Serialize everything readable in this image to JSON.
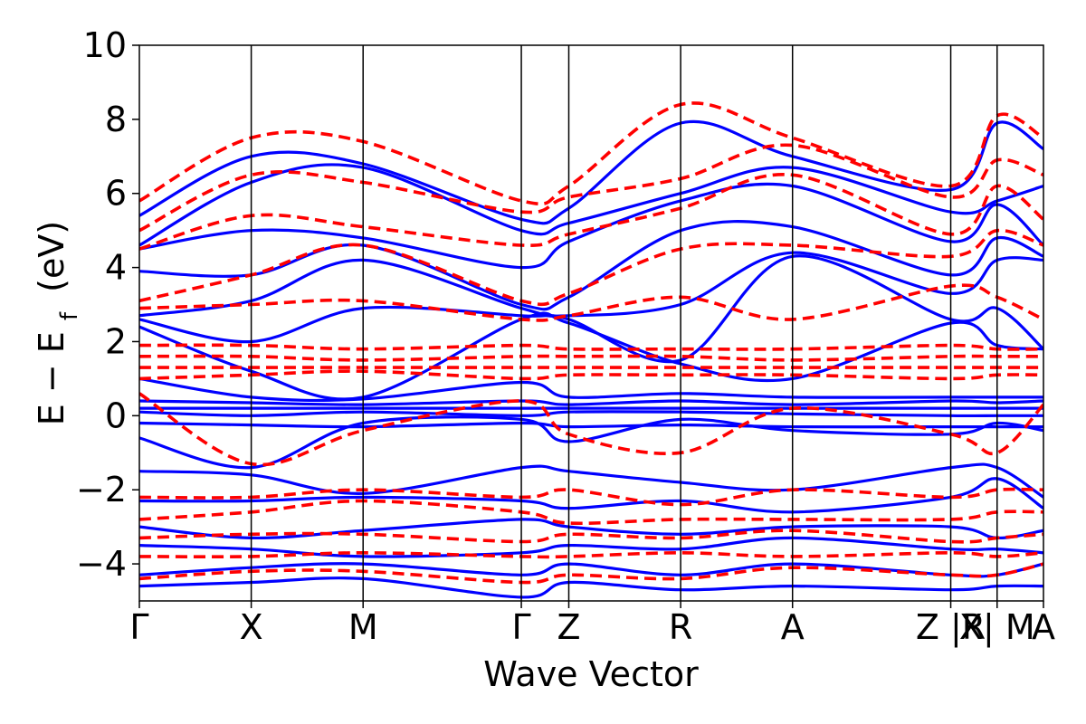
{
  "chart_data": {
    "type": "line",
    "title": "",
    "xlabel": "Wave Vector",
    "ylabel": "E − E",
    "ylabel_subscript": "f",
    "ylabel_unit": "(eV)",
    "ylim": [
      -5,
      10
    ],
    "y_ticks": [
      -4,
      -2,
      0,
      2,
      4,
      6,
      8,
      10
    ],
    "y_tick_labels": [
      "−4",
      "−2",
      "0",
      "2",
      "4",
      "6",
      "8",
      "10"
    ],
    "k_path": {
      "points": [
        0,
        0.707,
        1.414,
        2.414,
        2.714,
        3.421,
        4.128,
        5.128,
        5.421,
        5.714
      ],
      "labels": [
        "Γ",
        "X",
        "M",
        "Γ",
        "Z",
        "R",
        "A",
        "Z |R",
        "X| M",
        "A"
      ],
      "breaks": [
        "Z|R",
        "X|M"
      ]
    },
    "series_styles": [
      {
        "color": "#0000ff",
        "dash": "solid"
      },
      {
        "color": "#ff0000",
        "dash": "dashed"
      }
    ],
    "solid_bands": [
      {
        "x": [
          0,
          0.707,
          1.414,
          2.414,
          2.714,
          3.421,
          4.128,
          5.128,
          5.421,
          5.714
        ],
        "y": [
          5.4,
          7.0,
          6.8,
          5.3,
          5.6,
          7.9,
          7.0,
          6.1,
          7.9,
          7.2
        ]
      },
      {
        "x": [
          0,
          0.707,
          1.414,
          2.414,
          2.714,
          3.421,
          4.128,
          5.128,
          5.421,
          5.714
        ],
        "y": [
          4.6,
          6.3,
          6.7,
          5.0,
          5.2,
          6.0,
          6.7,
          5.5,
          5.8,
          6.2
        ]
      },
      {
        "x": [
          0,
          0.707,
          1.414,
          2.414,
          2.714,
          3.421,
          4.128,
          5.128,
          5.421,
          5.714
        ],
        "y": [
          4.5,
          5.0,
          4.8,
          4.0,
          4.7,
          5.8,
          6.2,
          4.7,
          5.7,
          4.6
        ]
      },
      {
        "x": [
          0,
          0.707,
          1.414,
          2.414,
          2.714,
          3.421,
          4.128,
          5.128,
          5.421,
          5.714
        ],
        "y": [
          3.9,
          3.8,
          4.6,
          3.0,
          3.2,
          5.0,
          5.1,
          3.8,
          4.8,
          4.3
        ]
      },
      {
        "x": [
          0,
          0.707,
          1.414,
          2.414,
          2.714,
          3.421,
          4.128,
          5.128,
          5.421,
          5.714
        ],
        "y": [
          2.7,
          3.1,
          4.2,
          2.9,
          2.7,
          3.0,
          4.4,
          3.3,
          4.2,
          4.2
        ]
      },
      {
        "x": [
          0,
          0.707,
          1.414,
          2.414,
          2.714,
          3.421,
          4.128,
          5.128,
          5.421,
          5.714
        ],
        "y": [
          2.6,
          2.0,
          2.9,
          2.7,
          2.6,
          1.5,
          4.3,
          2.6,
          2.9,
          1.8
        ]
      },
      {
        "x": [
          0,
          0.707,
          1.414,
          2.414,
          2.714,
          3.421,
          4.128,
          5.128,
          5.421,
          5.714
        ],
        "y": [
          2.4,
          1.2,
          0.5,
          2.6,
          2.5,
          1.4,
          1.0,
          2.5,
          1.9,
          1.8
        ]
      },
      {
        "x": [
          0,
          0.707,
          1.414,
          2.414,
          2.714,
          3.421,
          4.128,
          5.128,
          5.421,
          5.714
        ],
        "y": [
          1.0,
          0.5,
          0.45,
          0.9,
          0.5,
          0.6,
          0.5,
          0.5,
          0.5,
          0.5
        ]
      },
      {
        "x": [
          0,
          0.707,
          1.414,
          2.414,
          2.714,
          3.421,
          4.128,
          5.128,
          5.421,
          5.714
        ],
        "y": [
          0.4,
          0.35,
          0.3,
          0.4,
          0.3,
          0.4,
          0.3,
          0.4,
          0.35,
          0.4
        ]
      },
      {
        "x": [
          0,
          0.707,
          1.414,
          2.414,
          2.714,
          3.421,
          4.128,
          5.128,
          5.421,
          5.714
        ],
        "y": [
          0.2,
          0.2,
          0.2,
          0.2,
          0.2,
          0.2,
          0.2,
          0.2,
          0.2,
          0.2
        ]
      },
      {
        "x": [
          0,
          0.707,
          1.414,
          2.414,
          2.714,
          3.421,
          4.128,
          5.128,
          5.421,
          5.714
        ],
        "y": [
          0.1,
          0.0,
          0.1,
          0.0,
          0.1,
          0.1,
          0.05,
          0.0,
          0.0,
          0.0
        ]
      },
      {
        "x": [
          0,
          0.707,
          1.414,
          2.414,
          2.714,
          3.421,
          4.128,
          5.128,
          5.421,
          5.714
        ],
        "y": [
          -0.2,
          -0.25,
          -0.3,
          -0.2,
          -0.3,
          -0.25,
          -0.3,
          -0.3,
          -0.3,
          -0.3
        ]
      },
      {
        "x": [
          0,
          0.707,
          1.414,
          2.414,
          2.714,
          3.421,
          4.128,
          5.128,
          5.421,
          5.714
        ],
        "y": [
          -0.6,
          -1.4,
          -0.2,
          -0.1,
          -0.7,
          -0.1,
          -0.4,
          -0.5,
          -0.2,
          -0.4
        ]
      },
      {
        "x": [
          0,
          0.707,
          1.414,
          2.414,
          2.714,
          3.421,
          4.128,
          5.128,
          5.421,
          5.714
        ],
        "y": [
          -1.5,
          -1.6,
          -2.1,
          -1.4,
          -1.5,
          -1.8,
          -2.0,
          -1.4,
          -1.4,
          -2.2
        ]
      },
      {
        "x": [
          0,
          0.707,
          1.414,
          2.414,
          2.714,
          3.421,
          4.128,
          5.128,
          5.421,
          5.714
        ],
        "y": [
          -2.3,
          -2.3,
          -2.2,
          -2.3,
          -2.5,
          -2.3,
          -2.6,
          -2.2,
          -1.7,
          -2.5
        ]
      },
      {
        "x": [
          0,
          0.707,
          1.414,
          2.414,
          2.714,
          3.421,
          4.128,
          5.128,
          5.421,
          5.714
        ],
        "y": [
          -3.0,
          -3.3,
          -3.1,
          -2.8,
          -3.0,
          -3.2,
          -3.0,
          -3.0,
          -3.3,
          -3.1
        ]
      },
      {
        "x": [
          0,
          0.707,
          1.414,
          2.414,
          2.714,
          3.421,
          4.128,
          5.128,
          5.421,
          5.714
        ],
        "y": [
          -3.5,
          -3.6,
          -3.8,
          -3.7,
          -3.5,
          -3.6,
          -3.3,
          -3.6,
          -3.6,
          -3.7
        ]
      },
      {
        "x": [
          0,
          0.707,
          1.414,
          2.414,
          2.714,
          3.421,
          4.128,
          5.128,
          5.421,
          5.714
        ],
        "y": [
          -4.3,
          -4.1,
          -4.0,
          -4.3,
          -4.0,
          -4.3,
          -4.0,
          -4.3,
          -4.3,
          -4.0
        ]
      },
      {
        "x": [
          0,
          0.707,
          1.414,
          2.414,
          2.714,
          3.421,
          4.128,
          5.128,
          5.421,
          5.714
        ],
        "y": [
          -4.6,
          -4.5,
          -4.4,
          -4.9,
          -4.5,
          -4.7,
          -4.6,
          -4.7,
          -4.6,
          -4.6
        ]
      }
    ],
    "dashed_bands": [
      {
        "x": [
          0,
          0.707,
          1.414,
          2.414,
          2.714,
          3.421,
          4.128,
          5.128,
          5.421,
          5.714
        ],
        "y": [
          5.8,
          7.5,
          7.4,
          5.8,
          6.2,
          8.4,
          7.5,
          6.2,
          8.1,
          7.5
        ]
      },
      {
        "x": [
          0,
          0.707,
          1.414,
          2.414,
          2.714,
          3.421,
          4.128,
          5.128,
          5.421,
          5.714
        ],
        "y": [
          5.0,
          6.5,
          6.3,
          5.5,
          5.9,
          6.4,
          7.3,
          5.9,
          6.9,
          6.5
        ]
      },
      {
        "x": [
          0,
          0.707,
          1.414,
          2.414,
          2.714,
          3.421,
          4.128,
          5.128,
          5.421,
          5.714
        ],
        "y": [
          4.5,
          5.4,
          5.1,
          4.6,
          4.9,
          5.6,
          6.5,
          4.9,
          6.2,
          5.3
        ]
      },
      {
        "x": [
          0,
          0.707,
          1.414,
          2.414,
          2.714,
          3.421,
          4.128,
          5.128,
          5.421,
          5.714
        ],
        "y": [
          3.1,
          3.8,
          4.6,
          3.1,
          3.3,
          4.5,
          4.6,
          4.3,
          5.0,
          4.6
        ]
      },
      {
        "x": [
          0,
          0.707,
          1.414,
          2.414,
          2.714,
          3.421,
          4.128,
          5.128,
          5.421,
          5.714
        ],
        "y": [
          2.9,
          3.0,
          3.1,
          2.6,
          2.7,
          3.2,
          2.6,
          3.5,
          3.2,
          2.6
        ]
      },
      {
        "x": [
          0,
          0.707,
          1.414,
          2.414,
          2.714,
          3.421,
          4.128,
          5.128,
          5.421,
          5.714
        ],
        "y": [
          1.9,
          1.9,
          1.8,
          1.9,
          1.8,
          1.8,
          1.8,
          1.9,
          1.8,
          1.8
        ]
      },
      {
        "x": [
          0,
          0.707,
          1.414,
          2.414,
          2.714,
          3.421,
          4.128,
          5.128,
          5.421,
          5.714
        ],
        "y": [
          1.6,
          1.6,
          1.5,
          1.6,
          1.6,
          1.6,
          1.5,
          1.6,
          1.6,
          1.6
        ]
      },
      {
        "x": [
          0,
          0.707,
          1.414,
          2.414,
          2.714,
          3.421,
          4.128,
          5.128,
          5.421,
          5.714
        ],
        "y": [
          1.3,
          1.3,
          1.3,
          1.3,
          1.3,
          1.3,
          1.3,
          1.3,
          1.3,
          1.3
        ]
      },
      {
        "x": [
          0,
          0.707,
          1.414,
          2.414,
          2.714,
          3.421,
          4.128,
          5.128,
          5.421,
          5.714
        ],
        "y": [
          1.0,
          1.1,
          1.2,
          1.0,
          1.1,
          1.1,
          1.1,
          1.0,
          1.1,
          1.1
        ]
      },
      {
        "x": [
          0,
          0.707,
          1.414,
          2.414,
          2.714,
          3.421,
          4.128,
          5.128,
          5.421,
          5.714
        ],
        "y": [
          0.6,
          -1.3,
          -0.4,
          0.4,
          -0.5,
          -1.0,
          0.2,
          -0.5,
          -1.0,
          0.3
        ]
      },
      {
        "x": [
          0,
          0.707,
          1.414,
          2.414,
          2.714,
          3.421,
          4.128,
          5.128,
          5.421,
          5.714
        ],
        "y": [
          -2.2,
          -2.2,
          -2.0,
          -2.2,
          -2.0,
          -2.4,
          -2.0,
          -2.2,
          -2.0,
          -2.0
        ]
      },
      {
        "x": [
          0,
          0.707,
          1.414,
          2.414,
          2.714,
          3.421,
          4.128,
          5.128,
          5.421,
          5.714
        ],
        "y": [
          -2.8,
          -2.6,
          -2.3,
          -2.6,
          -2.9,
          -2.8,
          -2.8,
          -2.8,
          -2.6,
          -2.6
        ]
      },
      {
        "x": [
          0,
          0.707,
          1.414,
          2.414,
          2.714,
          3.421,
          4.128,
          5.128,
          5.421,
          5.714
        ],
        "y": [
          -3.3,
          -3.2,
          -3.2,
          -3.4,
          -3.2,
          -3.3,
          -3.1,
          -3.4,
          -3.3,
          -3.2
        ]
      },
      {
        "x": [
          0,
          0.707,
          1.414,
          2.414,
          2.714,
          3.421,
          4.128,
          5.128,
          5.421,
          5.714
        ],
        "y": [
          -3.8,
          -3.8,
          -3.7,
          -3.8,
          -3.8,
          -3.7,
          -3.8,
          -3.7,
          -3.8,
          -3.7
        ]
      },
      {
        "x": [
          0,
          0.707,
          1.414,
          2.414,
          2.714,
          3.421,
          4.128,
          5.128,
          5.421,
          5.714
        ],
        "y": [
          -4.4,
          -4.2,
          -4.2,
          -4.5,
          -4.3,
          -4.4,
          -4.1,
          -4.3,
          -4.3,
          -4.0
        ]
      }
    ]
  }
}
